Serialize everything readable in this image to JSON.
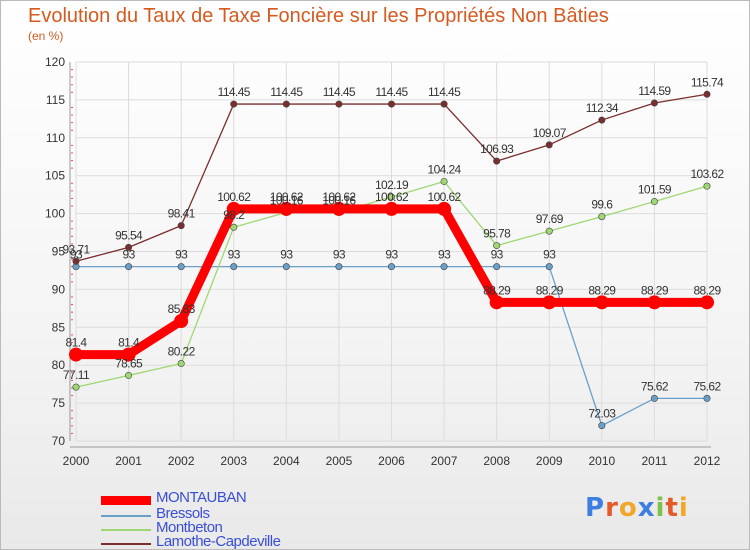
{
  "header": {
    "title": "Evolution du Taux de Taxe Foncière sur les Propriétés Non Bâties",
    "subtitle": "(en %)"
  },
  "logo": {
    "letters": [
      "P",
      "r",
      "o",
      "x",
      "i",
      "t",
      "i"
    ],
    "colors": [
      "#3d7ee0",
      "#e55a2a",
      "#f2a72b",
      "#3d7ee0",
      "#7dc24a",
      "#e55a2a",
      "#f2a72b"
    ]
  },
  "chart_data": {
    "type": "line",
    "title": "Evolution du Taux de Taxe Foncière sur les Propriétés Non Bâties",
    "ylabel": "(en %)",
    "xlabel": "",
    "ylim": [
      70,
      120
    ],
    "yticks": [
      "70",
      "75",
      "80",
      "85",
      "90",
      "95",
      "100",
      "105",
      "110",
      "115",
      "120"
    ],
    "categories": [
      "2000",
      "2001",
      "2002",
      "2003",
      "2004",
      "2005",
      "2006",
      "2007",
      "2008",
      "2009",
      "2010",
      "2011",
      "2012"
    ],
    "grid": true,
    "legend": "bottom-left",
    "series": [
      {
        "name": "MONTAUBAN",
        "color": "#ff0000",
        "width": 9,
        "values": [
          81.4,
          81.4,
          85.83,
          100.62,
          100.62,
          100.62,
          100.62,
          100.62,
          88.29,
          88.29,
          88.29,
          88.29,
          88.29
        ],
        "labels": [
          "81.4",
          "81.4",
          "85.83",
          "100.62",
          "100.62",
          "100.62",
          "100.62",
          "100.62",
          "88.29",
          "88.29",
          "88.29",
          "88.29",
          "88.29"
        ]
      },
      {
        "name": "Bressols",
        "color": "#6a9fc8",
        "width": 1.3,
        "values": [
          93,
          93,
          93,
          93,
          93,
          93,
          93,
          93,
          93,
          93,
          72.03,
          75.62,
          75.62
        ],
        "labels": [
          "93",
          "93",
          "93",
          "93",
          "93",
          "93",
          "93",
          "93",
          "93",
          "93",
          "72.03",
          "75.62",
          "75.62"
        ]
      },
      {
        "name": "Montbeton",
        "color": "#9ed873",
        "width": 1.3,
        "values": [
          77.11,
          78.65,
          80.22,
          98.2,
          100.16,
          100.16,
          102.19,
          104.24,
          95.78,
          97.69,
          99.6,
          101.59,
          103.62
        ],
        "labels": [
          "77.11",
          "78.65",
          "80.22",
          "98.2",
          "100.16",
          "100.16",
          "102.19",
          "104.24",
          "95.78",
          "97.69",
          "99.6",
          "101.59",
          "103.62"
        ]
      },
      {
        "name": "Lamothe-Capdeville",
        "color": "#7a2e2e",
        "width": 1.3,
        "values": [
          93.71,
          95.54,
          98.41,
          114.45,
          114.45,
          114.45,
          114.45,
          114.45,
          106.93,
          109.07,
          112.34,
          114.59,
          115.74
        ],
        "labels": [
          "93.71",
          "95.54",
          "98.41",
          "114.45",
          "114.45",
          "114.45",
          "114.45",
          "114.45",
          "106.93",
          "109.07",
          "112.34",
          "114.59",
          "115.74"
        ]
      }
    ]
  }
}
